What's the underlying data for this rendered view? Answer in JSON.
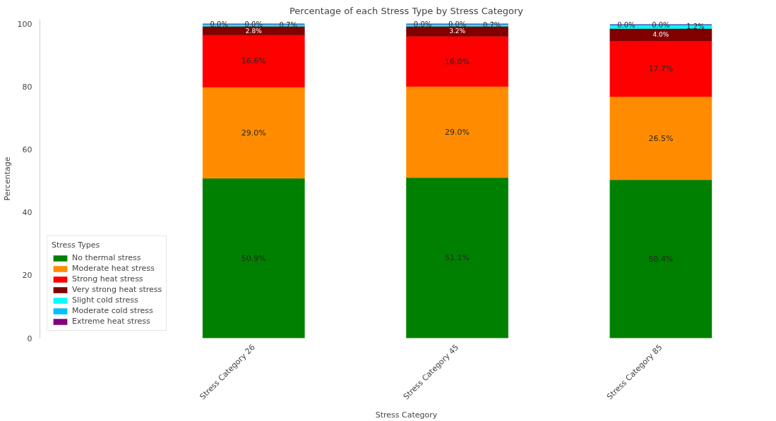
{
  "chart_data": {
    "type": "bar",
    "stacked": true,
    "title": "Percentage of each Stress Type by Stress Category",
    "xlabel": "Stress Category",
    "ylabel": "Percentage",
    "legend_title": "Stress Types",
    "categories": [
      "Stress Category 26",
      "Stress Category 45",
      "Stress Category 85"
    ],
    "series": [
      {
        "name": "No thermal stress",
        "color": "#008000",
        "values": [
          50.9,
          51.1,
          50.4
        ],
        "value_labels": [
          "50.9%",
          "51.1%",
          "50.4%"
        ]
      },
      {
        "name": "Moderate heat stress",
        "color": "#ff8c00",
        "values": [
          29.0,
          29.0,
          26.5
        ],
        "value_labels": [
          "29.0%",
          "29.0%",
          "26.5%"
        ]
      },
      {
        "name": "Strong heat stress",
        "color": "#ff0000",
        "values": [
          16.6,
          16.0,
          17.7
        ],
        "value_labels": [
          "16.6%",
          "16.0%",
          "17.7%"
        ]
      },
      {
        "name": "Very strong heat stress",
        "color": "#800000",
        "values": [
          2.8,
          3.2,
          4.0
        ],
        "value_labels": [
          "2.8%",
          "3.2%",
          "4.0%"
        ]
      },
      {
        "name": "Slight cold stress",
        "color": "#00ffff",
        "values": [
          0.7,
          0.7,
          1.2
        ],
        "value_labels": [
          "0.7%",
          "0.7%",
          "1.2%"
        ]
      },
      {
        "name": "Moderate cold stress",
        "color": "#00bfff",
        "values": [
          0.0,
          0.0,
          0.0
        ],
        "value_labels": [
          "0.0%",
          "0.0%",
          "0.0%"
        ]
      },
      {
        "name": "Extreme heat stress",
        "color": "#800080",
        "values": [
          0.0,
          0.0,
          0.0
        ],
        "value_labels": [
          "0.0%",
          "0.0%",
          "0.0%"
        ]
      }
    ],
    "ylim": [
      0,
      101.5
    ],
    "yticks": [
      0,
      20,
      40,
      60,
      80,
      100
    ],
    "grid": false,
    "legend": "bottom left"
  }
}
